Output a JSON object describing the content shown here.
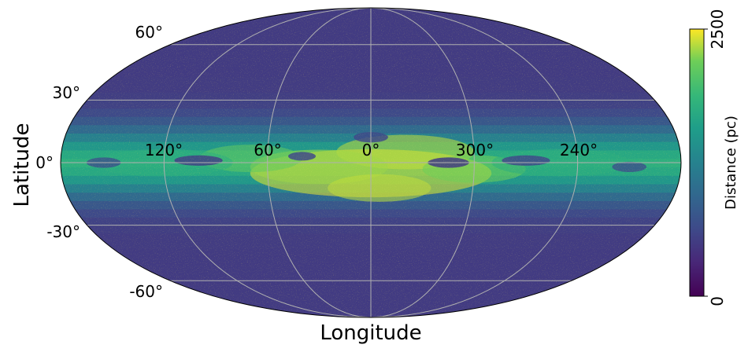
{
  "chart_data": {
    "type": "heatmap",
    "projection": "mollweide",
    "title": "",
    "xlabel": "Longitude",
    "ylabel": "Latitude",
    "lon_tick_labels": [
      "120°",
      "60°",
      "0°",
      "300°",
      "240°"
    ],
    "lon_tick_values": [
      120,
      60,
      0,
      300,
      240
    ],
    "lat_tick_labels": [
      "60°",
      "30°",
      "0°",
      "-30°",
      "-60°"
    ],
    "lat_tick_values": [
      60,
      30,
      0,
      -30,
      -60
    ],
    "grid": true,
    "colormap": "viridis",
    "colorbar": {
      "label": "Distance (pc)",
      "min": 0,
      "max": 2500,
      "tick_labels": [
        "0",
        "2500"
      ]
    },
    "description_values": {
      "galactic_plane_distance_pc": 2200,
      "high_latitude_distance_pc": 500
    }
  },
  "colors": {
    "viridis_low": "#440154",
    "viridis_mid": "#21918c",
    "viridis_high": "#fde725",
    "grid": "#b0b0b0"
  }
}
